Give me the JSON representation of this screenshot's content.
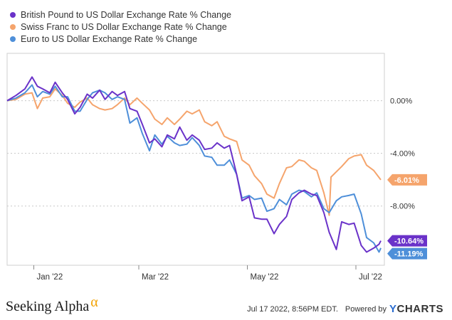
{
  "chart_data": {
    "type": "line",
    "title": "",
    "xlabel": "",
    "ylabel": "",
    "x_tick_labels": [
      "Jan '22",
      "Mar '22",
      "May '22",
      "Jul '22"
    ],
    "x_ticks": [
      "2022-01-01",
      "2022-03-01",
      "2022-05-01",
      "2022-07-01"
    ],
    "xlim": [
      "2021-12-17",
      "2022-07-17"
    ],
    "y_tick_labels": [
      "0.00%",
      "-4.00%",
      "-8.00%"
    ],
    "y_ticks": [
      0,
      -4,
      -8
    ],
    "ylim": [
      -12.5,
      3.6
    ],
    "grid": "horizontal dotted",
    "legend_position": "top-left",
    "series": [
      {
        "name": "British Pound to US Dollar Exchange Rate % Change",
        "color": "#6a32c9",
        "end_label": "-10.64%",
        "points": [
          [
            "2021-12-17",
            0.0
          ],
          [
            "2021-12-22",
            0.4
          ],
          [
            "2021-12-27",
            0.9
          ],
          [
            "2021-12-31",
            1.8
          ],
          [
            "2022-01-03",
            1.1
          ],
          [
            "2022-01-06",
            0.9
          ],
          [
            "2022-01-10",
            0.6
          ],
          [
            "2022-01-13",
            1.4
          ],
          [
            "2022-01-17",
            0.6
          ],
          [
            "2022-01-20",
            0.1
          ],
          [
            "2022-01-24",
            -1.0
          ],
          [
            "2022-01-27",
            -0.5
          ],
          [
            "2022-01-31",
            0.5
          ],
          [
            "2022-02-03",
            0.2
          ],
          [
            "2022-02-07",
            0.8
          ],
          [
            "2022-02-10",
            0.1
          ],
          [
            "2022-02-14",
            0.7
          ],
          [
            "2022-02-17",
            0.4
          ],
          [
            "2022-02-21",
            0.7
          ],
          [
            "2022-02-24",
            -0.6
          ],
          [
            "2022-02-28",
            -0.8
          ],
          [
            "2022-03-03",
            -1.8
          ],
          [
            "2022-03-07",
            -3.2
          ],
          [
            "2022-03-10",
            -2.9
          ],
          [
            "2022-03-14",
            -3.5
          ],
          [
            "2022-03-17",
            -2.6
          ],
          [
            "2022-03-21",
            -2.9
          ],
          [
            "2022-03-24",
            -2.0
          ],
          [
            "2022-03-28",
            -3.0
          ],
          [
            "2022-03-31",
            -2.6
          ],
          [
            "2022-04-04",
            -3.0
          ],
          [
            "2022-04-07",
            -3.7
          ],
          [
            "2022-04-11",
            -3.6
          ],
          [
            "2022-04-14",
            -3.2
          ],
          [
            "2022-04-18",
            -3.6
          ],
          [
            "2022-04-21",
            -3.4
          ],
          [
            "2022-04-25",
            -5.6
          ],
          [
            "2022-04-28",
            -7.6
          ],
          [
            "2022-05-02",
            -7.3
          ],
          [
            "2022-05-05",
            -8.9
          ],
          [
            "2022-05-09",
            -9.0
          ],
          [
            "2022-05-12",
            -9.0
          ],
          [
            "2022-05-16",
            -10.1
          ],
          [
            "2022-05-19",
            -9.4
          ],
          [
            "2022-05-23",
            -8.8
          ],
          [
            "2022-05-26",
            -7.5
          ],
          [
            "2022-05-30",
            -7.0
          ],
          [
            "2022-06-02",
            -6.8
          ],
          [
            "2022-06-06",
            -7.1
          ],
          [
            "2022-06-09",
            -7.2
          ],
          [
            "2022-06-13",
            -8.5
          ],
          [
            "2022-06-16",
            -10.0
          ],
          [
            "2022-06-20",
            -11.3
          ],
          [
            "2022-06-23",
            -9.2
          ],
          [
            "2022-06-27",
            -9.4
          ],
          [
            "2022-06-30",
            -9.3
          ],
          [
            "2022-07-04",
            -11.0
          ],
          [
            "2022-07-07",
            -11.5
          ],
          [
            "2022-07-11",
            -11.2
          ],
          [
            "2022-07-14",
            -10.9
          ],
          [
            "2022-07-15",
            -10.64
          ]
        ]
      },
      {
        "name": "Swiss Franc to US Dollar Exchange Rate % Change",
        "color": "#f5a46c",
        "end_label": "-6.01%",
        "points": [
          [
            "2021-12-17",
            0.0
          ],
          [
            "2021-12-22",
            0.1
          ],
          [
            "2021-12-27",
            0.5
          ],
          [
            "2021-12-31",
            0.6
          ],
          [
            "2022-01-03",
            -0.6
          ],
          [
            "2022-01-06",
            0.2
          ],
          [
            "2022-01-10",
            0.3
          ],
          [
            "2022-01-13",
            0.9
          ],
          [
            "2022-01-17",
            0.4
          ],
          [
            "2022-01-20",
            -0.2
          ],
          [
            "2022-01-24",
            -0.5
          ],
          [
            "2022-01-27",
            -0.1
          ],
          [
            "2022-01-31",
            0.2
          ],
          [
            "2022-02-03",
            -0.3
          ],
          [
            "2022-02-07",
            -0.6
          ],
          [
            "2022-02-10",
            -0.7
          ],
          [
            "2022-02-14",
            -0.6
          ],
          [
            "2022-02-17",
            -0.3
          ],
          [
            "2022-02-21",
            0.2
          ],
          [
            "2022-02-24",
            -0.3
          ],
          [
            "2022-02-28",
            0.2
          ],
          [
            "2022-03-03",
            -0.2
          ],
          [
            "2022-03-07",
            -0.7
          ],
          [
            "2022-03-10",
            -1.4
          ],
          [
            "2022-03-14",
            -1.8
          ],
          [
            "2022-03-17",
            -1.3
          ],
          [
            "2022-03-21",
            -1.8
          ],
          [
            "2022-03-24",
            -1.4
          ],
          [
            "2022-03-28",
            -0.8
          ],
          [
            "2022-03-31",
            -1.0
          ],
          [
            "2022-04-04",
            -0.7
          ],
          [
            "2022-04-07",
            -1.6
          ],
          [
            "2022-04-11",
            -1.9
          ],
          [
            "2022-04-14",
            -1.6
          ],
          [
            "2022-04-18",
            -2.7
          ],
          [
            "2022-04-21",
            -2.9
          ],
          [
            "2022-04-25",
            -3.1
          ],
          [
            "2022-04-28",
            -4.5
          ],
          [
            "2022-05-02",
            -4.9
          ],
          [
            "2022-05-05",
            -5.7
          ],
          [
            "2022-05-09",
            -6.3
          ],
          [
            "2022-05-12",
            -7.1
          ],
          [
            "2022-05-16",
            -7.4
          ],
          [
            "2022-05-19",
            -6.3
          ],
          [
            "2022-05-23",
            -5.1
          ],
          [
            "2022-05-26",
            -5.0
          ],
          [
            "2022-05-30",
            -4.5
          ],
          [
            "2022-06-02",
            -4.6
          ],
          [
            "2022-06-06",
            -5.1
          ],
          [
            "2022-06-09",
            -5.3
          ],
          [
            "2022-06-13",
            -7.0
          ],
          [
            "2022-06-16",
            -8.7
          ],
          [
            "2022-06-17",
            -5.8
          ],
          [
            "2022-06-20",
            -5.4
          ],
          [
            "2022-06-23",
            -5.0
          ],
          [
            "2022-06-27",
            -4.4
          ],
          [
            "2022-06-30",
            -4.2
          ],
          [
            "2022-07-04",
            -4.1
          ],
          [
            "2022-07-07",
            -4.9
          ],
          [
            "2022-07-11",
            -5.3
          ],
          [
            "2022-07-15",
            -6.01
          ]
        ]
      },
      {
        "name": "Euro to US Dollar Exchange Rate % Change",
        "color": "#4e8fd9",
        "end_label": "-11.19%",
        "points": [
          [
            "2021-12-17",
            0.0
          ],
          [
            "2021-12-22",
            0.2
          ],
          [
            "2021-12-27",
            0.6
          ],
          [
            "2021-12-31",
            1.2
          ],
          [
            "2022-01-03",
            0.3
          ],
          [
            "2022-01-06",
            0.7
          ],
          [
            "2022-01-10",
            0.5
          ],
          [
            "2022-01-13",
            1.1
          ],
          [
            "2022-01-17",
            0.3
          ],
          [
            "2022-01-20",
            0.3
          ],
          [
            "2022-01-24",
            -0.8
          ],
          [
            "2022-01-27",
            -0.8
          ],
          [
            "2022-01-31",
            0.1
          ],
          [
            "2022-02-03",
            0.6
          ],
          [
            "2022-02-07",
            0.8
          ],
          [
            "2022-02-10",
            0.6
          ],
          [
            "2022-02-14",
            0.1
          ],
          [
            "2022-02-17",
            0.3
          ],
          [
            "2022-02-21",
            0.1
          ],
          [
            "2022-02-24",
            -1.7
          ],
          [
            "2022-02-28",
            -1.3
          ],
          [
            "2022-03-03",
            -2.5
          ],
          [
            "2022-03-07",
            -3.8
          ],
          [
            "2022-03-10",
            -2.6
          ],
          [
            "2022-03-14",
            -3.3
          ],
          [
            "2022-03-17",
            -2.7
          ],
          [
            "2022-03-21",
            -3.2
          ],
          [
            "2022-03-24",
            -3.4
          ],
          [
            "2022-03-28",
            -3.3
          ],
          [
            "2022-03-31",
            -2.8
          ],
          [
            "2022-04-04",
            -3.4
          ],
          [
            "2022-04-07",
            -4.2
          ],
          [
            "2022-04-11",
            -4.3
          ],
          [
            "2022-04-14",
            -4.9
          ],
          [
            "2022-04-18",
            -4.9
          ],
          [
            "2022-04-21",
            -4.5
          ],
          [
            "2022-04-25",
            -5.6
          ],
          [
            "2022-04-28",
            -7.4
          ],
          [
            "2022-05-02",
            -7.2
          ],
          [
            "2022-05-05",
            -7.5
          ],
          [
            "2022-05-09",
            -7.4
          ],
          [
            "2022-05-12",
            -8.4
          ],
          [
            "2022-05-16",
            -8.2
          ],
          [
            "2022-05-19",
            -7.5
          ],
          [
            "2022-05-23",
            -7.9
          ],
          [
            "2022-05-26",
            -7.1
          ],
          [
            "2022-05-30",
            -6.8
          ],
          [
            "2022-06-02",
            -6.9
          ],
          [
            "2022-06-06",
            -7.3
          ],
          [
            "2022-06-09",
            -7.0
          ],
          [
            "2022-06-13",
            -8.2
          ],
          [
            "2022-06-16",
            -8.5
          ],
          [
            "2022-06-20",
            -7.6
          ],
          [
            "2022-06-23",
            -7.3
          ],
          [
            "2022-06-27",
            -7.2
          ],
          [
            "2022-06-30",
            -7.1
          ],
          [
            "2022-07-04",
            -8.6
          ],
          [
            "2022-07-07",
            -10.4
          ],
          [
            "2022-07-11",
            -10.8
          ],
          [
            "2022-07-14",
            -11.5
          ],
          [
            "2022-07-15",
            -11.19
          ]
        ]
      }
    ]
  },
  "footer": {
    "brand": "Seeking Alpha",
    "brand_mark": "α",
    "timestamp": "Jul 17 2022, 8:56PM EDT.",
    "powered_by": "Powered by",
    "ycharts_y": "Y",
    "ycharts_rest": "CHARTS"
  }
}
